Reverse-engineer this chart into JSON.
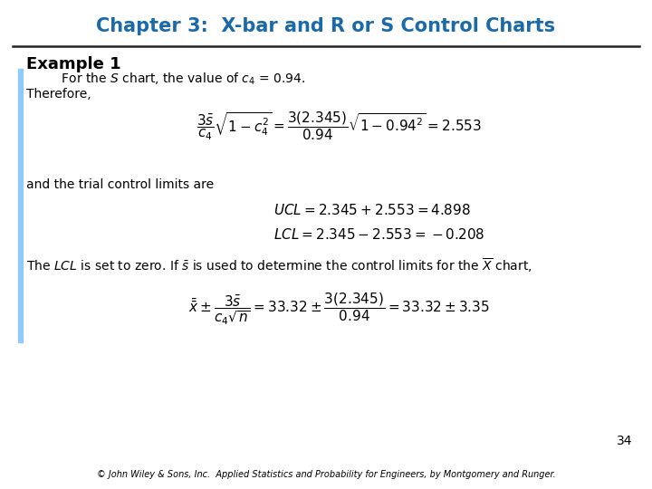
{
  "title": "Chapter 3:  X-bar and R or S Control Charts",
  "title_color": "#1A6AAA",
  "background_color": "#FFFFFF",
  "example_label": "Example 1",
  "blue_bar_color": "#90CAF9",
  "line_color": "#222222",
  "page_number": "34",
  "footer": "© John Wiley & Sons, Inc.  Applied Statistics and Probability for Engineers, by Montgomery and Runger.",
  "line1": "    For the $S$ chart, the value of $c_4$ = 0.94.",
  "line2": "Therefore,",
  "formula1": "$\\dfrac{3\\bar{s}}{c_4}\\sqrt{1 - c_4^2} = \\dfrac{3(2.345)}{0.94}\\sqrt{1 - 0.94^2} = 2.553$",
  "middle_text": "and the trial control limits are",
  "formula2_ucl": "$\\mathit{UCL} = 2.345 + 2.553 = 4.898$",
  "formula2_lcl": "$\\mathit{LCL} = 2.345 - 2.553 = -0.208$",
  "bottom_text": "The $\\mathit{LCL}$ is set to zero. If $\\bar{s}$ is used to determine the control limits for the $\\overline{X}$ chart,",
  "formula3": "$\\bar{\\bar{x}} \\pm \\dfrac{3\\bar{s}}{c_4\\sqrt{n}} = 33.32 \\pm \\dfrac{3(2.345)}{0.94} = 33.32 \\pm 3.35$",
  "title_fontsize": 15,
  "body_fontsize": 10,
  "formula_fontsize": 11,
  "example_fontsize": 13
}
